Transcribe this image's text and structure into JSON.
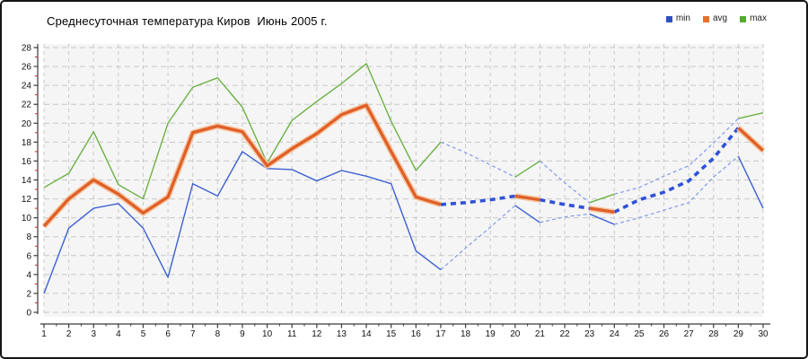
{
  "chart_data": {
    "type": "line",
    "title": "Среднесуточная температура Киров  Июнь 2005 г.",
    "xlabel": "",
    "ylabel": "",
    "x": [
      1,
      2,
      3,
      4,
      5,
      6,
      7,
      8,
      9,
      10,
      11,
      12,
      13,
      14,
      15,
      16,
      17,
      18,
      19,
      20,
      21,
      22,
      23,
      24,
      25,
      26,
      27,
      28,
      29,
      30
    ],
    "x_ticks": [
      1,
      2,
      3,
      4,
      5,
      6,
      7,
      8,
      9,
      10,
      11,
      12,
      13,
      14,
      15,
      16,
      17,
      18,
      19,
      20,
      21,
      22,
      23,
      24,
      25,
      26,
      27,
      28,
      29,
      30
    ],
    "y_ticks": [
      0,
      2,
      4,
      6,
      8,
      10,
      12,
      14,
      16,
      18,
      20,
      22,
      24,
      26,
      28
    ],
    "ylim": [
      0,
      28
    ],
    "grid": true,
    "legend_position": "top-right",
    "series": [
      {
        "name": "min",
        "color": "#2b50c8",
        "line_color": "#3d60d2",
        "weight": "thin",
        "values": [
          2.0,
          8.9,
          11.0,
          11.5,
          8.9,
          3.7,
          13.6,
          12.3,
          17.0,
          15.2,
          15.1,
          13.9,
          15.0,
          14.4,
          13.6,
          6.5,
          4.5,
          6.8,
          9.0,
          11.3,
          9.5,
          10.1,
          10.4,
          9.3,
          10.0,
          10.8,
          11.6,
          14.3,
          16.5,
          11.0
        ]
      },
      {
        "name": "avg",
        "color": "#e8702a",
        "line_color": "#e06028",
        "halo_color": "#f6c49c",
        "weight": "thick",
        "values": [
          9.1,
          12.0,
          14.0,
          12.5,
          10.5,
          12.2,
          19.0,
          19.7,
          19.1,
          15.5,
          17.3,
          18.9,
          20.9,
          21.9,
          17.0,
          12.2,
          11.4,
          11.6,
          11.9,
          12.3,
          11.9,
          11.4,
          11.0,
          10.6,
          11.9,
          12.7,
          13.9,
          16.3,
          19.5,
          17.1
        ]
      },
      {
        "name": "max",
        "color": "#55aa2a",
        "line_color": "#6cb144",
        "weight": "thin",
        "values": [
          13.2,
          14.7,
          19.1,
          13.5,
          12.0,
          20.0,
          23.8,
          24.8,
          21.7,
          15.8,
          20.3,
          22.3,
          24.2,
          26.3,
          20.2,
          15.0,
          18.0,
          16.9,
          15.6,
          14.3,
          16.0,
          13.7,
          11.6,
          12.5,
          13.2,
          14.4,
          15.5,
          17.9,
          20.5,
          21.1
        ]
      }
    ],
    "solid_day_ranges": [
      [
        1,
        17
      ],
      [
        20,
        21
      ],
      [
        23,
        24
      ],
      [
        29,
        30
      ]
    ],
    "dashed_day_ranges": [
      [
        17,
        20
      ],
      [
        21,
        23
      ],
      [
        24,
        29
      ]
    ],
    "dashed_thick_color": "#2f52d8",
    "dashed_thin_color": "#8ba0ea",
    "panel_bg": "#f5f5f5",
    "gridline_color": "#c8c8c8",
    "axis_color": "#3a3a3a",
    "minor_tick_color": "#cc2222",
    "tick_label_color": "#111111"
  }
}
